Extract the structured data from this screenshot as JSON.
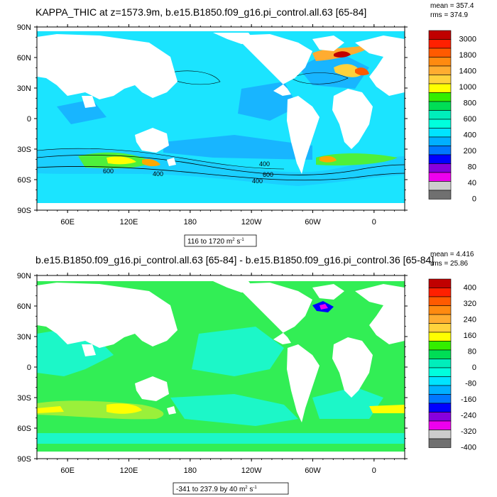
{
  "panel1": {
    "title": "KAPPA_THIC at z=1573.9m, b.e15.B1850.f09_g16.pi_control.all.63 [65-84]",
    "stats": {
      "mean": "mean = 357.4",
      "rms": "rms = 374.9"
    },
    "range_label": {
      "text": "116 to 1720 m",
      "exp": "2",
      "unit2": " s",
      "exp2": "-1"
    },
    "contour_labels": [
      "400",
      "600",
      "400",
      "600",
      "400"
    ]
  },
  "panel2": {
    "title": "b.e15.B1850.f09_g16.pi_control.all.63 [65-84] - b.e15.B1850.f09_g16.pi_control.36 [65-84]",
    "stats": {
      "mean": "mean = 4.416",
      "rms": "rms = 25.86"
    },
    "range_label": {
      "text": "-341 to 237.9 by 40 m",
      "exp": "2",
      "unit2": " s",
      "exp2": "-1"
    }
  },
  "chart_data": [
    {
      "type": "heatmap",
      "title": "KAPPA_THIC at z=1573.9m, b.e15.B1850.f09_g16.pi_control.all.63 [65-84]",
      "xlabel": "",
      "ylabel": "",
      "x_ticks": [
        "60E",
        "120E",
        "180",
        "120W",
        "60W",
        "0"
      ],
      "y_ticks": [
        "90N",
        "60N",
        "30N",
        "0",
        "30S",
        "60S",
        "90S"
      ],
      "colorbar_labels": [
        "3000",
        "1800",
        "1400",
        "1000",
        "800",
        "600",
        "400",
        "200",
        "80",
        "40",
        "0"
      ],
      "colorbar_colors": [
        "#c00000",
        "#ff2000",
        "#ff5a00",
        "#ff8a10",
        "#ffac30",
        "#ffd23c",
        "#ffff00",
        "#33ee00",
        "#00dd55",
        "#00eebb",
        "#00ffdd",
        "#00e4ff",
        "#00b0ff",
        "#0077ff",
        "#0000ff",
        "#8800dd",
        "#ee00ee",
        "#cccccc",
        "#707070"
      ],
      "mean": 357.4,
      "rms": 374.9,
      "min": 116,
      "max": 1720,
      "units": "m2 s-1"
    },
    {
      "type": "heatmap",
      "title": "b.e15.B1850.f09_g16.pi_control.all.63 [65-84] - b.e15.B1850.f09_g16.pi_control.36 [65-84]",
      "xlabel": "",
      "ylabel": "",
      "x_ticks": [
        "60E",
        "120E",
        "180",
        "120W",
        "60W",
        "0"
      ],
      "y_ticks": [
        "90N",
        "60N",
        "30N",
        "0",
        "30S",
        "60S",
        "90S"
      ],
      "colorbar_labels": [
        "400",
        "320",
        "240",
        "160",
        "80",
        "0",
        "-80",
        "-160",
        "-240",
        "-320",
        "-400"
      ],
      "colorbar_colors": [
        "#c00000",
        "#ff2000",
        "#ff5a00",
        "#ff8a10",
        "#ffac30",
        "#ffd23c",
        "#ffff00",
        "#33ee00",
        "#00dd55",
        "#00eebb",
        "#00ffdd",
        "#00e4ff",
        "#00b0ff",
        "#0077ff",
        "#0000ff",
        "#8800dd",
        "#ee00ee",
        "#cccccc",
        "#707070"
      ],
      "mean": 4.416,
      "rms": 25.86,
      "min": -341,
      "max": 237.9,
      "interval": 40,
      "units": "m2 s-1"
    }
  ],
  "colors": {
    "ocean1": "#1be4ff",
    "ocean1_dark": "#18b5ff",
    "ocean2": "#32ee55",
    "ocean2_light": "#1cf7c8",
    "land": "#ffffff"
  }
}
